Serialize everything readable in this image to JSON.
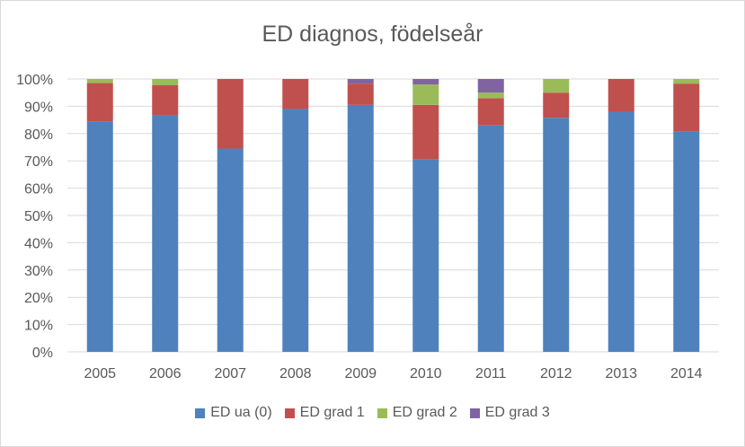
{
  "chart_data": {
    "type": "bar",
    "stacked": true,
    "title": "ED diagnos, födelseår",
    "xlabel": "",
    "ylabel": "",
    "ylim": [
      0,
      100
    ],
    "y_ticks": [
      "0%",
      "10%",
      "20%",
      "30%",
      "40%",
      "50%",
      "60%",
      "70%",
      "80%",
      "90%",
      "100%"
    ],
    "grid": true,
    "legend_position": "bottom",
    "categories": [
      "2005",
      "2006",
      "2007",
      "2008",
      "2009",
      "2010",
      "2011",
      "2012",
      "2013",
      "2014"
    ],
    "series": [
      {
        "name": "ED ua (0)",
        "color": "#4f81bd",
        "values": [
          84.5,
          86.7,
          74.5,
          89,
          90.5,
          70.5,
          83,
          85.8,
          88,
          80.8
        ]
      },
      {
        "name": "ED grad 1",
        "color": "#c0504d",
        "values": [
          14,
          11,
          25.5,
          11,
          7.8,
          20,
          10,
          9.2,
          12,
          17.5
        ]
      },
      {
        "name": "ED grad 2",
        "color": "#9bbb59",
        "values": [
          1.5,
          2.3,
          0,
          0,
          0,
          7.5,
          2,
          5,
          0,
          1.7
        ]
      },
      {
        "name": "ED grad 3",
        "color": "#8064a2",
        "values": [
          0,
          0,
          0,
          0,
          1.7,
          2,
          5,
          0,
          0,
          0
        ]
      }
    ]
  }
}
